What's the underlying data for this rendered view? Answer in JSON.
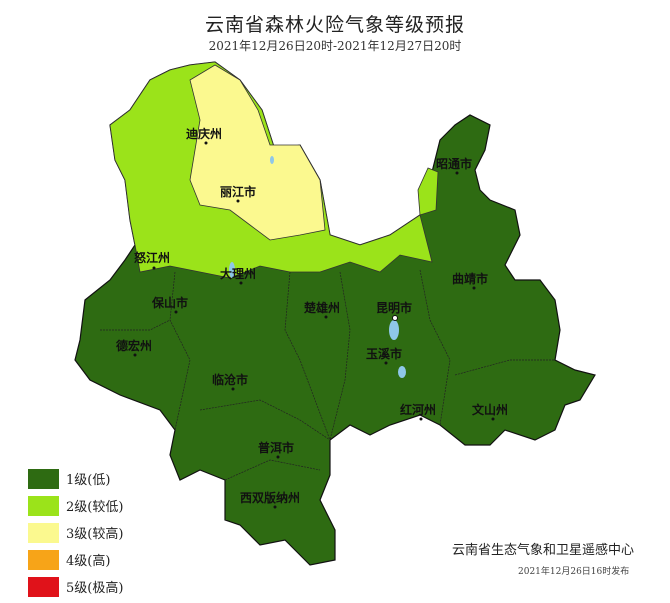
{
  "header": {
    "title": "云南省森林火险气象等级预报",
    "subtitle": "2021年12月26日20时-2021年12月27日20时"
  },
  "map": {
    "regions": [
      {
        "name": "迪庆州",
        "level": 3
      },
      {
        "name": "丽江市",
        "level": 3
      },
      {
        "name": "怒江州",
        "level": 2
      },
      {
        "name": "大理州",
        "level": 2
      },
      {
        "name": "昭通市",
        "level": 1
      },
      {
        "name": "曲靖市",
        "level": 1
      },
      {
        "name": "保山市",
        "level": 1
      },
      {
        "name": "楚雄州",
        "level": 1
      },
      {
        "name": "昆明市",
        "level": 1
      },
      {
        "name": "德宏州",
        "level": 1
      },
      {
        "name": "玉溪市",
        "level": 1
      },
      {
        "name": "临沧市",
        "level": 1
      },
      {
        "name": "红河州",
        "level": 1
      },
      {
        "name": "文山州",
        "level": 1
      },
      {
        "name": "普洱市",
        "level": 1
      },
      {
        "name": "西双版纳州",
        "level": 1
      }
    ]
  },
  "legend": {
    "items": [
      {
        "label": "1级(低)",
        "color": "#2e6b12"
      },
      {
        "label": "2级(较低)",
        "color": "#9be31a"
      },
      {
        "label": "3级(较高)",
        "color": "#fbf98f"
      },
      {
        "label": "4级(高)",
        "color": "#f7a418"
      },
      {
        "label": "5级(极高)",
        "color": "#e0121a"
      }
    ]
  },
  "footer": {
    "organization": "云南省生态气象和卫星遥感中心",
    "issued": "2021年12月26日16时发布"
  }
}
